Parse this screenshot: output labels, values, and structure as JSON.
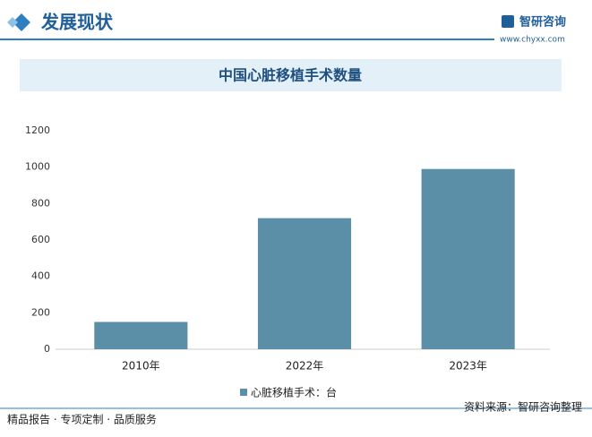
{
  "header": {
    "title": "发展现状",
    "logo": "智研咨询",
    "website": "www.chyxx.com"
  },
  "chart_data": {
    "type": "bar",
    "title": "中国心脏移植手术数量",
    "categories": [
      "2010年",
      "2022年",
      "2023年"
    ],
    "series": [
      {
        "name": "心脏移植手术：台",
        "color": "#5b8fa8",
        "values": [
          150,
          720,
          990
        ]
      }
    ],
    "ylim": [
      0,
      1200
    ],
    "yticks": [
      0,
      200,
      400,
      600,
      800,
      1000,
      1200
    ],
    "grid": false
  },
  "footer": {
    "tagline": "精品报告 · 专项定制 · 品质服务",
    "source": "资料来源：智研咨询整理"
  }
}
